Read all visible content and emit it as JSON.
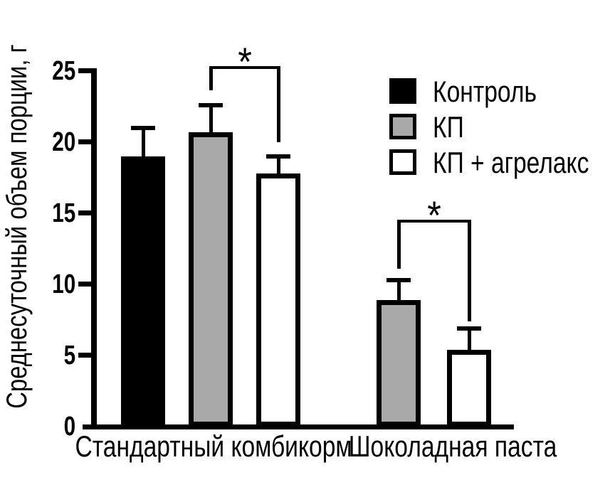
{
  "chart_data": {
    "type": "bar",
    "title": "",
    "xlabel": "",
    "ylabel": "Среднесуточный объем порции, г",
    "ylim": [
      0,
      25
    ],
    "yticks": [
      0,
      5,
      10,
      15,
      20,
      25
    ],
    "categories": [
      "Стандартный комбикорм",
      "Шоколадная паста"
    ],
    "series": [
      {
        "name": "Контроль",
        "fill": "#000000",
        "edge": "#000000",
        "values": [
          19.0,
          null
        ],
        "error_upper": [
          2.0,
          null
        ]
      },
      {
        "name": "КП",
        "fill": "#a9a9a9",
        "edge": "#000000",
        "values": [
          20.7,
          8.9
        ],
        "error_upper": [
          1.9,
          1.4
        ]
      },
      {
        "name": "КП + агрелакс",
        "fill": "#ffffff",
        "edge": "#000000",
        "values": [
          17.8,
          5.4
        ],
        "error_upper": [
          1.2,
          1.5
        ]
      }
    ],
    "significance": [
      {
        "category": "Стандартный комбикорм",
        "between": [
          "КП",
          "КП + агрелакс"
        ],
        "label": "*"
      },
      {
        "category": "Шоколадная паста",
        "between": [
          "КП",
          "КП + агрелакс"
        ],
        "label": "*"
      }
    ],
    "legend": {
      "position": "upper-right",
      "entries": [
        "Контроль",
        "КП",
        "КП + агрелакс"
      ]
    },
    "grid": false,
    "background": "#ffffff",
    "axis_color": "#000000"
  }
}
